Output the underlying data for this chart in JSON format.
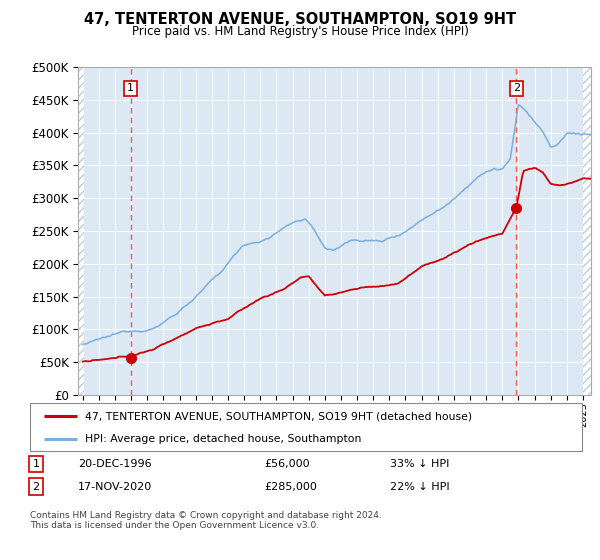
{
  "title": "47, TENTERTON AVENUE, SOUTHAMPTON, SO19 9HT",
  "subtitle": "Price paid vs. HM Land Registry's House Price Index (HPI)",
  "legend_line1": "47, TENTERTON AVENUE, SOUTHAMPTON, SO19 9HT (detached house)",
  "legend_line2": "HPI: Average price, detached house, Southampton",
  "footnote": "Contains HM Land Registry data © Crown copyright and database right 2024.\nThis data is licensed under the Open Government Licence v3.0.",
  "table_row1_date": "20-DEC-1996",
  "table_row1_price": "£56,000",
  "table_row1_hpi": "33% ↓ HPI",
  "table_row2_date": "17-NOV-2020",
  "table_row2_price": "£285,000",
  "table_row2_hpi": "22% ↓ HPI",
  "ylim": [
    0,
    500000
  ],
  "yticks": [
    0,
    50000,
    100000,
    150000,
    200000,
    250000,
    300000,
    350000,
    400000,
    450000,
    500000
  ],
  "bg_color": "#dce9f5",
  "hatch_color": "#c0cdd8",
  "red_line_color": "#cc0000",
  "blue_line_color": "#7aaedc",
  "marker_color": "#cc0000",
  "dashed_line_color": "#ff5555",
  "point1_x": 1996.97,
  "point1_y": 56000,
  "point2_x": 2020.88,
  "point2_y": 285000,
  "xmin": 1993.7,
  "xmax": 2025.5,
  "hatch_left_end": 1994.08,
  "hatch_right_start": 2025.0
}
